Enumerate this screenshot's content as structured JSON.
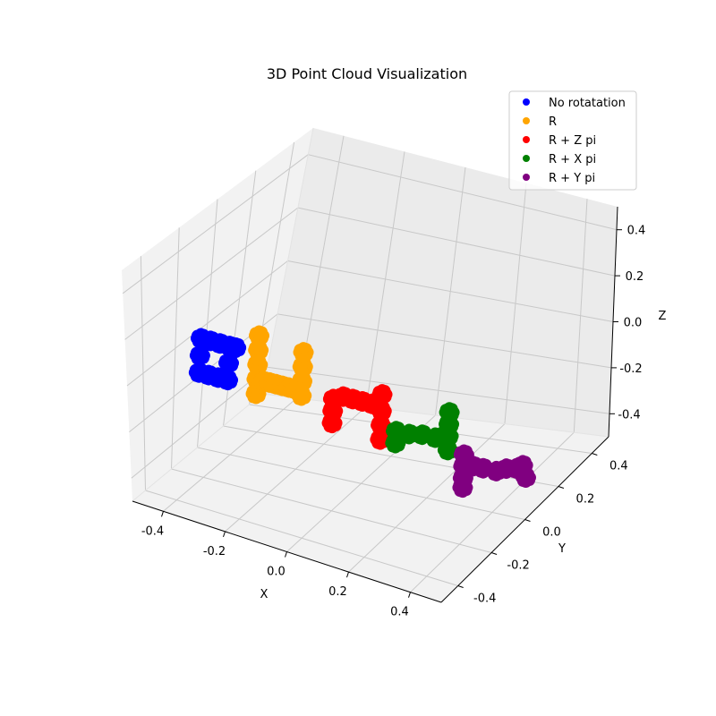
{
  "chart_data": {
    "type": "scatter",
    "projection": "3d",
    "title": "3D Point Cloud Visualization",
    "xlabel": "X",
    "ylabel": "Y",
    "zlabel": "Z",
    "xlim": [
      -0.5,
      0.5
    ],
    "ylim": [
      -0.5,
      0.5
    ],
    "zlim": [
      -0.5,
      0.5
    ],
    "x_ticks": [
      "-0.4",
      "-0.2",
      "0.0",
      "0.2",
      "0.4"
    ],
    "y_ticks": [
      "-0.4",
      "-0.2",
      "0.0",
      "0.2",
      "0.4"
    ],
    "z_ticks": [
      "-0.4",
      "-0.2",
      "0.0",
      "0.2",
      "0.4"
    ],
    "grid": true,
    "legend_position": "top-right",
    "series": [
      {
        "name": "No rotatation",
        "color": "#0000ff",
        "points": [
          [
            -0.47,
            -0.1,
            0.0
          ],
          [
            -0.44,
            -0.1,
            0.0
          ],
          [
            -0.41,
            -0.1,
            0.0
          ],
          [
            -0.38,
            -0.1,
            0.0
          ],
          [
            -0.36,
            -0.1,
            0.0
          ],
          [
            -0.47,
            -0.1,
            -0.07
          ],
          [
            -0.47,
            -0.1,
            -0.14
          ],
          [
            -0.44,
            -0.1,
            -0.14
          ],
          [
            -0.41,
            -0.1,
            -0.14
          ],
          [
            -0.38,
            -0.1,
            -0.14
          ],
          [
            -0.38,
            -0.1,
            -0.07
          ]
        ]
      },
      {
        "name": "R",
        "color": "#ffa500",
        "points": [
          [
            -0.3,
            -0.08,
            0.06
          ],
          [
            -0.3,
            -0.08,
            0.0
          ],
          [
            -0.3,
            -0.08,
            -0.06
          ],
          [
            -0.3,
            -0.08,
            -0.12
          ],
          [
            -0.3,
            -0.08,
            -0.18
          ],
          [
            -0.28,
            -0.08,
            -0.12
          ],
          [
            -0.26,
            -0.08,
            -0.12
          ],
          [
            -0.24,
            -0.08,
            -0.12
          ],
          [
            -0.22,
            -0.08,
            -0.12
          ],
          [
            -0.2,
            -0.08,
            -0.12
          ],
          [
            -0.18,
            -0.08,
            -0.12
          ],
          [
            -0.16,
            -0.08,
            -0.08
          ],
          [
            -0.16,
            -0.08,
            -0.02
          ],
          [
            -0.16,
            -0.08,
            0.04
          ],
          [
            -0.16,
            -0.08,
            -0.14
          ]
        ]
      },
      {
        "name": "R + Z pi",
        "color": "#ff0000",
        "points": [
          [
            -0.08,
            -0.04,
            -0.15
          ],
          [
            -0.08,
            -0.04,
            -0.2
          ],
          [
            -0.08,
            -0.04,
            -0.25
          ],
          [
            -0.05,
            -0.04,
            -0.13
          ],
          [
            -0.02,
            -0.04,
            -0.13
          ],
          [
            0.01,
            -0.04,
            -0.13
          ],
          [
            0.04,
            -0.04,
            -0.13
          ],
          [
            0.06,
            -0.04,
            -0.13
          ],
          [
            0.07,
            -0.04,
            -0.08
          ],
          [
            0.07,
            -0.04,
            -0.15
          ],
          [
            0.07,
            -0.04,
            -0.21
          ],
          [
            0.07,
            -0.04,
            -0.27
          ]
        ]
      },
      {
        "name": "R + X pi",
        "color": "#008000",
        "points": [
          [
            0.08,
            0.04,
            -0.28
          ],
          [
            0.08,
            0.04,
            -0.33
          ],
          [
            0.12,
            0.04,
            -0.28
          ],
          [
            0.16,
            0.04,
            -0.27
          ],
          [
            0.2,
            0.04,
            -0.27
          ],
          [
            0.23,
            0.04,
            -0.25
          ],
          [
            0.24,
            0.04,
            -0.15
          ],
          [
            0.24,
            0.04,
            -0.2
          ],
          [
            0.24,
            0.04,
            -0.25
          ],
          [
            0.24,
            0.04,
            -0.31
          ]
        ]
      },
      {
        "name": "R + Y pi",
        "color": "#800080",
        "points": [
          [
            0.28,
            0.06,
            -0.33
          ],
          [
            0.28,
            0.06,
            -0.38
          ],
          [
            0.28,
            0.06,
            -0.43
          ],
          [
            0.28,
            0.06,
            -0.47
          ],
          [
            0.31,
            0.06,
            -0.37
          ],
          [
            0.34,
            0.06,
            -0.37
          ],
          [
            0.38,
            0.06,
            -0.37
          ],
          [
            0.41,
            0.06,
            -0.35
          ],
          [
            0.44,
            0.06,
            -0.34
          ],
          [
            0.46,
            0.06,
            -0.32
          ],
          [
            0.47,
            0.06,
            -0.37
          ]
        ]
      }
    ]
  }
}
